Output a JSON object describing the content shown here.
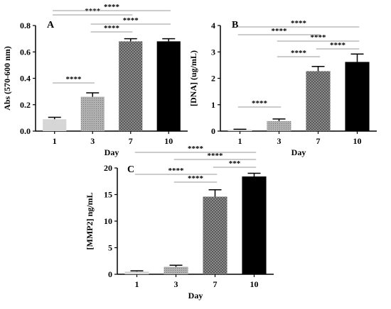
{
  "colors": {
    "day1": "#d6d6d6",
    "day3": "#a8a8a8",
    "day7": "#808080",
    "day10": "#000000",
    "axis": "#000000",
    "bracket": "#9a9a9a"
  },
  "chart_data": [
    {
      "type": "bar",
      "panel_label": "A",
      "categories": [
        "1",
        "3",
        "7",
        "10"
      ],
      "values": [
        0.09,
        0.26,
        0.68,
        0.68
      ],
      "errors": [
        0.015,
        0.03,
        0.02,
        0.02
      ],
      "ylim": [
        0,
        0.8
      ],
      "yticks": [
        0.0,
        0.2,
        0.4,
        0.6,
        0.8
      ],
      "ytick_labels": [
        "0.0",
        "0.2",
        "0.4",
        "0.6",
        "0.8"
      ],
      "xlabel": "Day",
      "ylabel": "Abs (570-600 nm)",
      "significance": [
        {
          "from": 0,
          "to": 1,
          "label": "****"
        },
        {
          "from": 0,
          "to": 2,
          "label": "****"
        },
        {
          "from": 1,
          "to": 2,
          "label": "****"
        },
        {
          "from": 1,
          "to": 3,
          "label": "****"
        },
        {
          "from": 0,
          "to": 3,
          "label": "****"
        }
      ]
    },
    {
      "type": "bar",
      "panel_label": "B",
      "categories": [
        "1",
        "3",
        "7",
        "10"
      ],
      "values": [
        0.05,
        0.38,
        2.27,
        2.62
      ],
      "errors": [
        0.02,
        0.08,
        0.18,
        0.3
      ],
      "ylim": [
        0,
        4
      ],
      "yticks": [
        0,
        1,
        2,
        3,
        4
      ],
      "ytick_labels": [
        "0",
        "1",
        "2",
        "3",
        "4"
      ],
      "xlabel": "Day",
      "ylabel": "[DNA] (ug/mL)",
      "significance": [
        {
          "from": 0,
          "to": 1,
          "label": "****"
        },
        {
          "from": 1,
          "to": 2,
          "label": "****"
        },
        {
          "from": 2,
          "to": 3,
          "label": "****"
        },
        {
          "from": 1,
          "to": 3,
          "label": "****"
        },
        {
          "from": 0,
          "to": 2,
          "label": "****"
        },
        {
          "from": 0,
          "to": 3,
          "label": "****"
        }
      ]
    },
    {
      "type": "bar",
      "panel_label": "C",
      "categories": [
        "1",
        "3",
        "7",
        "10"
      ],
      "values": [
        0.5,
        1.4,
        14.6,
        18.4
      ],
      "errors": [
        0.15,
        0.3,
        1.3,
        0.6
      ],
      "ylim": [
        0,
        20
      ],
      "yticks": [
        0,
        5,
        10,
        15,
        20
      ],
      "ytick_labels": [
        "0",
        "5",
        "10",
        "15",
        "20"
      ],
      "xlabel": "Day",
      "ylabel": "[MMP2]  ng/mL",
      "significance": [
        {
          "from": 2,
          "to": 3,
          "label": "***"
        },
        {
          "from": 1,
          "to": 2,
          "label": "****"
        },
        {
          "from": 0,
          "to": 2,
          "label": "****"
        },
        {
          "from": 1,
          "to": 3,
          "label": "****"
        },
        {
          "from": 0,
          "to": 3,
          "label": "****"
        }
      ]
    }
  ]
}
